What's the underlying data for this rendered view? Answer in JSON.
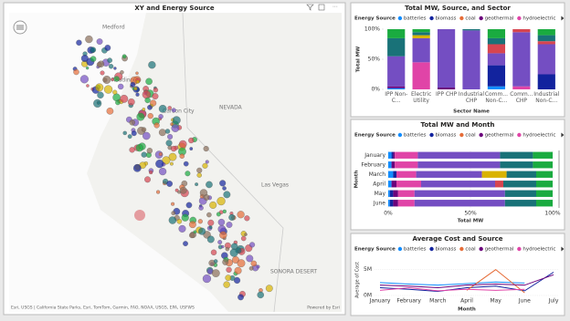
{
  "map": {
    "title": "XY and Energy Source",
    "labels": [
      "Medford",
      "Redding",
      "Carson City",
      "NEVADA",
      "Las Vegas",
      "SONORA DESERT"
    ],
    "attribution": "Esri, USGS | California State Parks, Esri, TomTom, Garmin, FAO, NOAA, USGS, EPA, USFWS",
    "powered": "Powered by Esri"
  },
  "chart_data": [
    {
      "type": "stacked_column",
      "title": "Total MW, Source, and Sector",
      "legend_title": "Energy Source",
      "x_label": "Sector Name",
      "y_label": "Total MW",
      "categories": [
        "IPP Non-C...",
        "Electric Utility",
        "IPP CHP",
        "Industrial CHP",
        "Comm... Non-C...",
        "Comm... CHP",
        "Industrial Non-C..."
      ],
      "ylim": [
        0,
        100
      ],
      "yticks": [
        {
          "value": 0,
          "label": "0%"
        },
        {
          "value": 50,
          "label": "50%"
        },
        {
          "value": 100,
          "label": "100%"
        }
      ],
      "series": [
        {
          "name": "batteries",
          "color": "#118DFF",
          "values": [
            2,
            0,
            0,
            0,
            5,
            0,
            0
          ]
        },
        {
          "name": "biomass",
          "color": "#12239E",
          "values": [
            0,
            0,
            0,
            0,
            35,
            0,
            25
          ]
        },
        {
          "name": "coal",
          "color": "#E66C37",
          "values": [
            0,
            0,
            0,
            0,
            0,
            0,
            0
          ]
        },
        {
          "name": "geothermal",
          "color": "#6B007B",
          "values": [
            3,
            0,
            3,
            0,
            0,
            0,
            0
          ]
        },
        {
          "name": "hydroelectric",
          "color": "#E044A7",
          "values": [
            0,
            45,
            0,
            0,
            0,
            5,
            0
          ]
        },
        {
          "name": null,
          "color": "#744EC2",
          "values": [
            50,
            40,
            97,
            98,
            20,
            90,
            50
          ]
        },
        {
          "name": null,
          "color": "#D64550",
          "values": [
            0,
            0,
            0,
            0,
            15,
            5,
            5
          ]
        },
        {
          "name": null,
          "color": "#D9B300",
          "values": [
            0,
            5,
            0,
            0,
            0,
            0,
            0
          ]
        },
        {
          "name": null,
          "color": "#197278",
          "values": [
            30,
            5,
            0,
            2,
            10,
            0,
            10
          ]
        },
        {
          "name": null,
          "color": "#1AAB40",
          "values": [
            15,
            5,
            0,
            0,
            15,
            0,
            10
          ]
        }
      ]
    },
    {
      "type": "stacked_bar",
      "title": "Total MW and Month",
      "legend_title": "Energy Source",
      "x_label": "Total MW",
      "y_label": "Month",
      "categories": [
        "January",
        "February",
        "March",
        "April",
        "May",
        "June"
      ],
      "xlim": [
        0,
        100
      ],
      "xticks": [
        {
          "value": 0,
          "label": "0%"
        },
        {
          "value": 50,
          "label": "50%"
        },
        {
          "value": 100,
          "label": "100%"
        }
      ],
      "series": [
        {
          "name": "batteries",
          "color": "#118DFF",
          "values": [
            2,
            2,
            3,
            2,
            1,
            1
          ]
        },
        {
          "name": "biomass",
          "color": "#12239E",
          "values": [
            1,
            0,
            2,
            0,
            2,
            2
          ]
        },
        {
          "name": "coal",
          "color": "#E66C37",
          "values": [
            0,
            0,
            0,
            0,
            0,
            0
          ]
        },
        {
          "name": "geothermal",
          "color": "#6B007B",
          "values": [
            1,
            2,
            0,
            3,
            3,
            3
          ]
        },
        {
          "name": "hydroelectric",
          "color": "#E044A7",
          "values": [
            14,
            14,
            12,
            15,
            10,
            10
          ]
        },
        {
          "name": null,
          "color": "#744EC2",
          "values": [
            50,
            50,
            40,
            45,
            55,
            55
          ]
        },
        {
          "name": null,
          "color": "#D64550",
          "values": [
            0,
            0,
            0,
            5,
            0,
            0
          ]
        },
        {
          "name": null,
          "color": "#D9B300",
          "values": [
            0,
            0,
            15,
            0,
            0,
            0
          ]
        },
        {
          "name": null,
          "color": "#197278",
          "values": [
            20,
            20,
            18,
            20,
            19,
            19
          ]
        },
        {
          "name": null,
          "color": "#1AAB40",
          "values": [
            12,
            12,
            10,
            10,
            10,
            10
          ]
        }
      ]
    },
    {
      "type": "line",
      "title": "Average Cost and Source",
      "legend_title": "Energy Source",
      "x_label": "Month",
      "y_label": "Average of Cost",
      "categories": [
        "January",
        "February",
        "March",
        "April",
        "May",
        "June",
        "July"
      ],
      "ylim": [
        0,
        6000000
      ],
      "yticks": [
        {
          "value": 0,
          "label": "0M"
        },
        {
          "value": 5000000,
          "label": "5M"
        }
      ],
      "series": [
        {
          "name": "batteries",
          "color": "#118DFF",
          "values": [
            2500000,
            2200000,
            2000000,
            2300000,
            2600000,
            2400000,
            null
          ]
        },
        {
          "name": "biomass",
          "color": "#12239E",
          "values": [
            1500000,
            1200000,
            800000,
            1500000,
            1800000,
            900000,
            4500000
          ]
        },
        {
          "name": "coal",
          "color": "#E66C37",
          "values": [
            null,
            null,
            null,
            1000000,
            5000000,
            500000,
            null
          ]
        },
        {
          "name": "geothermal",
          "color": "#6B007B",
          "values": [
            2000000,
            1800000,
            1500000,
            2000000,
            2200000,
            2000000,
            4000000
          ]
        },
        {
          "name": "hydroelectric",
          "color": "#E044A7",
          "values": [
            1000000,
            1500000,
            900000,
            1200000,
            1000000,
            1200000,
            null
          ]
        }
      ]
    }
  ]
}
